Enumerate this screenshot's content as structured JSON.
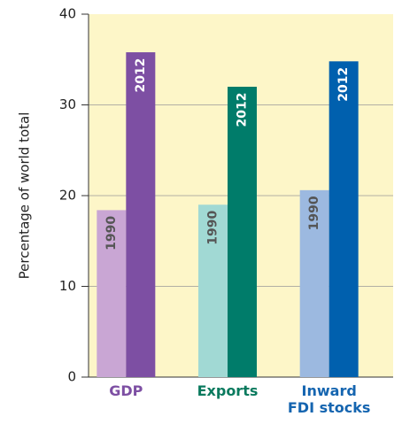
{
  "chart_data": {
    "type": "bar",
    "y_label": "Percentage of world total",
    "categories": [
      "GDP",
      "Exports",
      "Inward\nFDI stocks"
    ],
    "category_colors": [
      "#7d4fa3",
      "#0a7a5e",
      "#1565b0"
    ],
    "series": [
      {
        "name": "1990",
        "colors": [
          "#c9a6d4",
          "#a1d9d4",
          "#9cb9e0"
        ],
        "values": [
          18.4,
          19.0,
          20.6
        ]
      },
      {
        "name": "2012",
        "colors": [
          "#7d4fa3",
          "#007c6a",
          "#0060ae"
        ],
        "values": [
          35.8,
          32.0,
          34.8
        ]
      }
    ],
    "ylim": [
      0,
      40
    ],
    "yticks": [
      0,
      10,
      20,
      30,
      40
    ],
    "grid": true,
    "plot_background": "#fdf6c8"
  }
}
